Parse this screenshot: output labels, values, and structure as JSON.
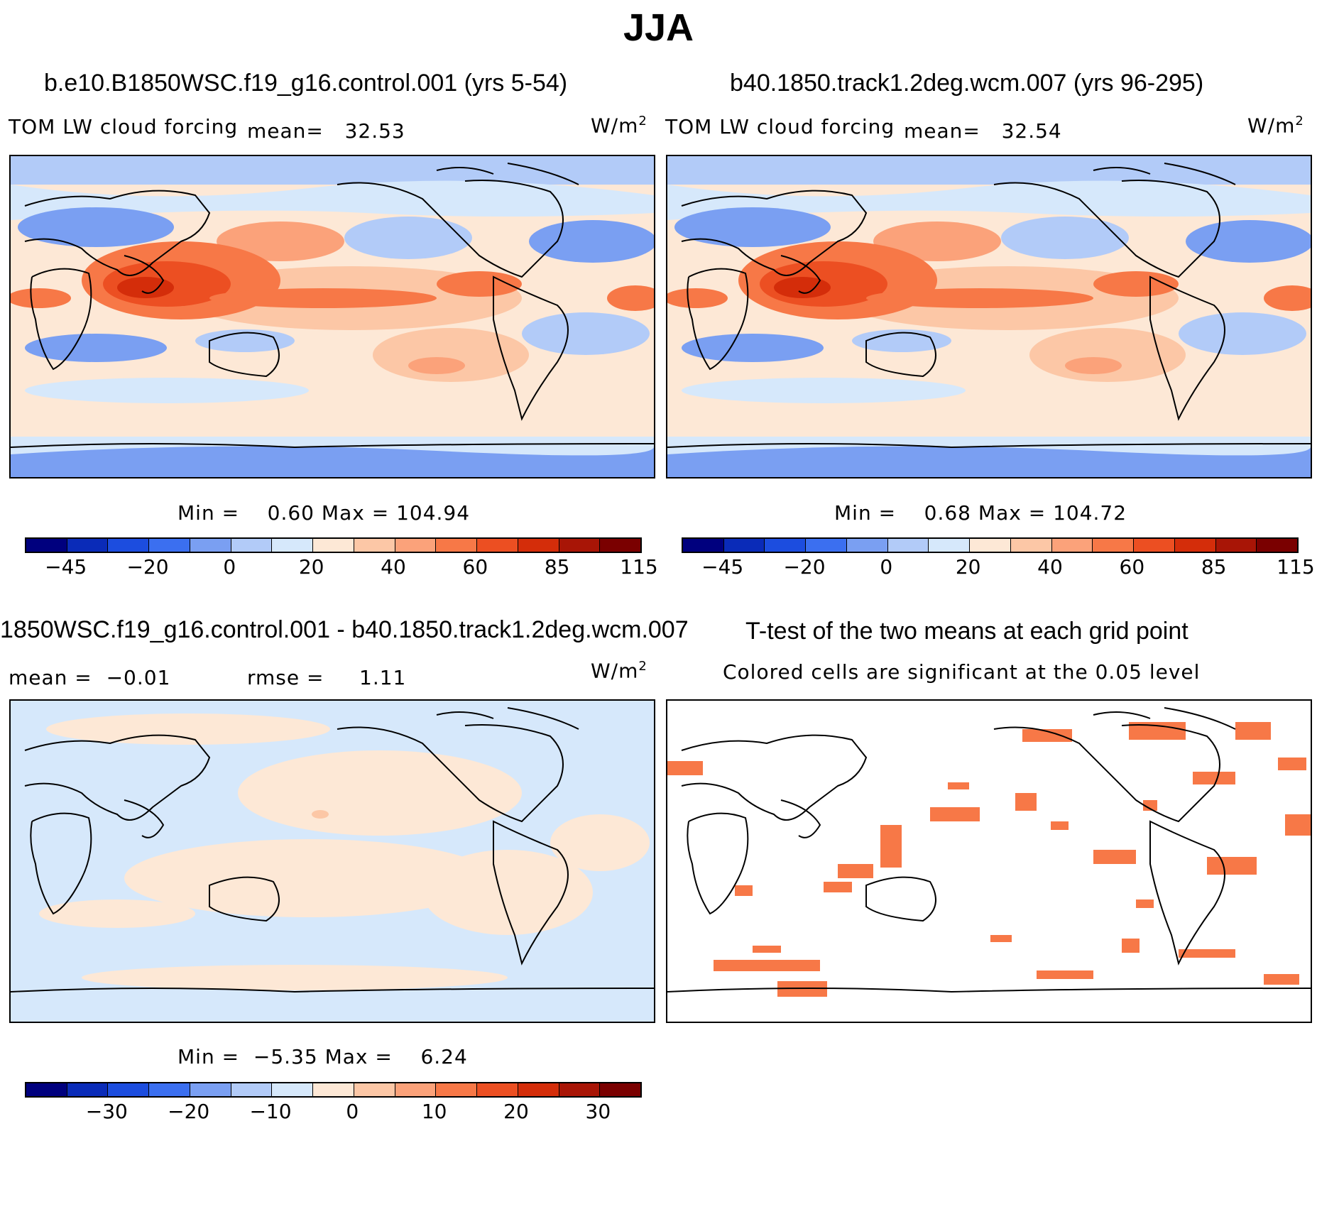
{
  "title": "JJA",
  "panels": {
    "top_left": {
      "title": "b.e10.B1850WSC.f19_g16.control.001 (yrs 5-54)",
      "variable": "TOM LW cloud forcing",
      "mean_label": "mean=",
      "mean_value": "32.53",
      "units": "W/m",
      "units_exp": "2",
      "min_label": "Min =",
      "min_value": "0.60",
      "max_label": "Max =",
      "max_value": "104.94"
    },
    "top_right": {
      "title": "b40.1850.track1.2deg.wcm.007 (yrs 96-295)",
      "variable": "TOM LW cloud forcing",
      "mean_label": "mean=",
      "mean_value": "32.54",
      "units": "W/m",
      "units_exp": "2",
      "min_label": "Min =",
      "min_value": "0.68",
      "max_label": "Max =",
      "max_value": "104.72"
    },
    "bottom_left": {
      "title": "1850WSC.f19_g16.control.001 - b40.1850.track1.2deg.wcm.007",
      "mean_label": "mean =",
      "mean_value": "−0.01",
      "rmse_label": "rmse =",
      "rmse_value": "1.11",
      "units": "W/m",
      "units_exp": "2",
      "min_label": "Min =",
      "min_value": "−5.35",
      "max_label": "Max =",
      "max_value": "6.24"
    },
    "bottom_right": {
      "title": "T-test of the two means at each grid point",
      "subtitle": "Colored cells are significant at the 0.05 level"
    }
  },
  "colorbars": {
    "full": {
      "colors": [
        "#00007e",
        "#0a2bb8",
        "#1c4ddf",
        "#3b6ff0",
        "#7a9ff2",
        "#b2cbf8",
        "#d6e8fb",
        "#fde8d6",
        "#fcc7a6",
        "#fba27a",
        "#f77847",
        "#ec4f22",
        "#d42d0a",
        "#a81506",
        "#7a0000"
      ],
      "ticks": [
        "−45",
        "−20",
        "0",
        "20",
        "40",
        "60",
        "85",
        "115"
      ]
    },
    "diff": {
      "colors": [
        "#00007e",
        "#0a2bb8",
        "#1c4ddf",
        "#3b6ff0",
        "#7a9ff2",
        "#b2cbf8",
        "#d6e8fb",
        "#fde8d6",
        "#fcc7a6",
        "#fba27a",
        "#f77847",
        "#ec4f22",
        "#d42d0a",
        "#a81506",
        "#7a0000"
      ],
      "ticks": [
        "−30",
        "−20",
        "−10",
        "0",
        "10",
        "20",
        "30"
      ]
    }
  }
}
